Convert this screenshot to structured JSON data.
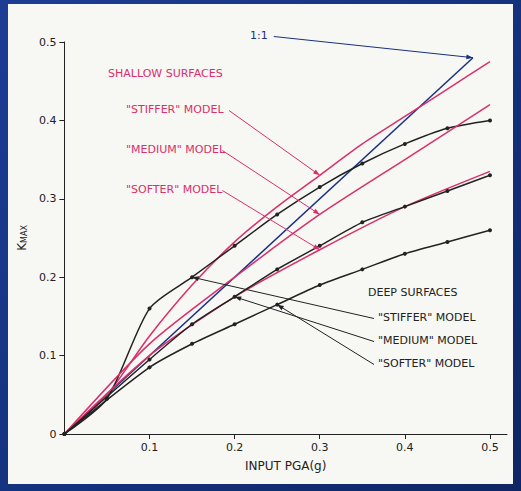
{
  "chart_data": {
    "type": "line",
    "xlabel": "INPUT PGA(g)",
    "ylabel": "KMAX",
    "xlim": [
      0,
      0.52
    ],
    "ylim": [
      0,
      0.5
    ],
    "xticks": [
      0.1,
      0.2,
      0.3,
      0.4,
      0.5
    ],
    "yticks": [
      0,
      0.1,
      0.2,
      0.3,
      0.4,
      0.5
    ],
    "grid": false,
    "series": [
      {
        "color": "#1a2f80",
        "marker": "none",
        "line_style": "solid",
        "x": [
          0,
          0.48
        ],
        "values": [
          0,
          0.48
        ]
      },
      {
        "color": "#d9306b",
        "marker": "none",
        "line_style": "solid",
        "x": [
          0,
          0.05,
          0.1,
          0.15,
          0.2,
          0.25,
          0.3,
          0.35,
          0.4,
          0.45,
          0.5
        ],
        "values": [
          0,
          0.05,
          0.125,
          0.19,
          0.245,
          0.29,
          0.33,
          0.37,
          0.405,
          0.44,
          0.475
        ]
      },
      {
        "color": "#222222",
        "marker": "circle",
        "line_style": "solid",
        "x": [
          0,
          0.05,
          0.1,
          0.15,
          0.2,
          0.25,
          0.3,
          0.35,
          0.4,
          0.45,
          0.5
        ],
        "values": [
          0,
          0.045,
          0.16,
          0.2,
          0.24,
          0.28,
          0.315,
          0.345,
          0.37,
          0.39,
          0.4
        ]
      },
      {
        "color": "#d9306b",
        "marker": "none",
        "line_style": "solid",
        "x": [
          0,
          0.1,
          0.2,
          0.3,
          0.4,
          0.5
        ],
        "values": [
          0,
          0.115,
          0.2,
          0.28,
          0.35,
          0.42
        ]
      },
      {
        "color": "#d9306b",
        "marker": "none",
        "line_style": "solid",
        "x": [
          0,
          0.1,
          0.2,
          0.3,
          0.4,
          0.5
        ],
        "values": [
          0,
          0.1,
          0.175,
          0.235,
          0.29,
          0.335
        ]
      },
      {
        "color": "#222222",
        "marker": "circle",
        "line_style": "solid",
        "x": [
          0,
          0.1,
          0.15,
          0.2,
          0.25,
          0.3,
          0.35,
          0.4,
          0.45,
          0.5
        ],
        "values": [
          0,
          0.095,
          0.14,
          0.175,
          0.21,
          0.24,
          0.27,
          0.29,
          0.31,
          0.33
        ]
      },
      {
        "color": "#222222",
        "marker": "circle",
        "line_style": "solid",
        "x": [
          0,
          0.1,
          0.15,
          0.2,
          0.25,
          0.3,
          0.35,
          0.4,
          0.45,
          0.5
        ],
        "values": [
          0,
          0.085,
          0.115,
          0.14,
          0.165,
          0.19,
          0.21,
          0.23,
          0.245,
          0.26
        ]
      }
    ],
    "annotations": [
      {
        "text": "1:1",
        "color": "#1a2f80"
      },
      {
        "text": "SHALLOW SURFACES",
        "color": "#d9306b"
      },
      {
        "text": "\"STIFFER\" MODEL",
        "color": "#d9306b"
      },
      {
        "text": "\"MEDIUM\" MODEL",
        "color": "#d9306b"
      },
      {
        "text": "\"SOFTER\" MODEL",
        "color": "#d9306b"
      },
      {
        "text": "DEEP SURFACES",
        "color": "#222222"
      },
      {
        "text": "\"STIFFER\" MODEL",
        "color": "#222222"
      },
      {
        "text": "\"MEDIUM\" MODEL",
        "color": "#222222"
      },
      {
        "text": "\"SOFTER\" MODEL",
        "color": "#222222"
      }
    ]
  }
}
